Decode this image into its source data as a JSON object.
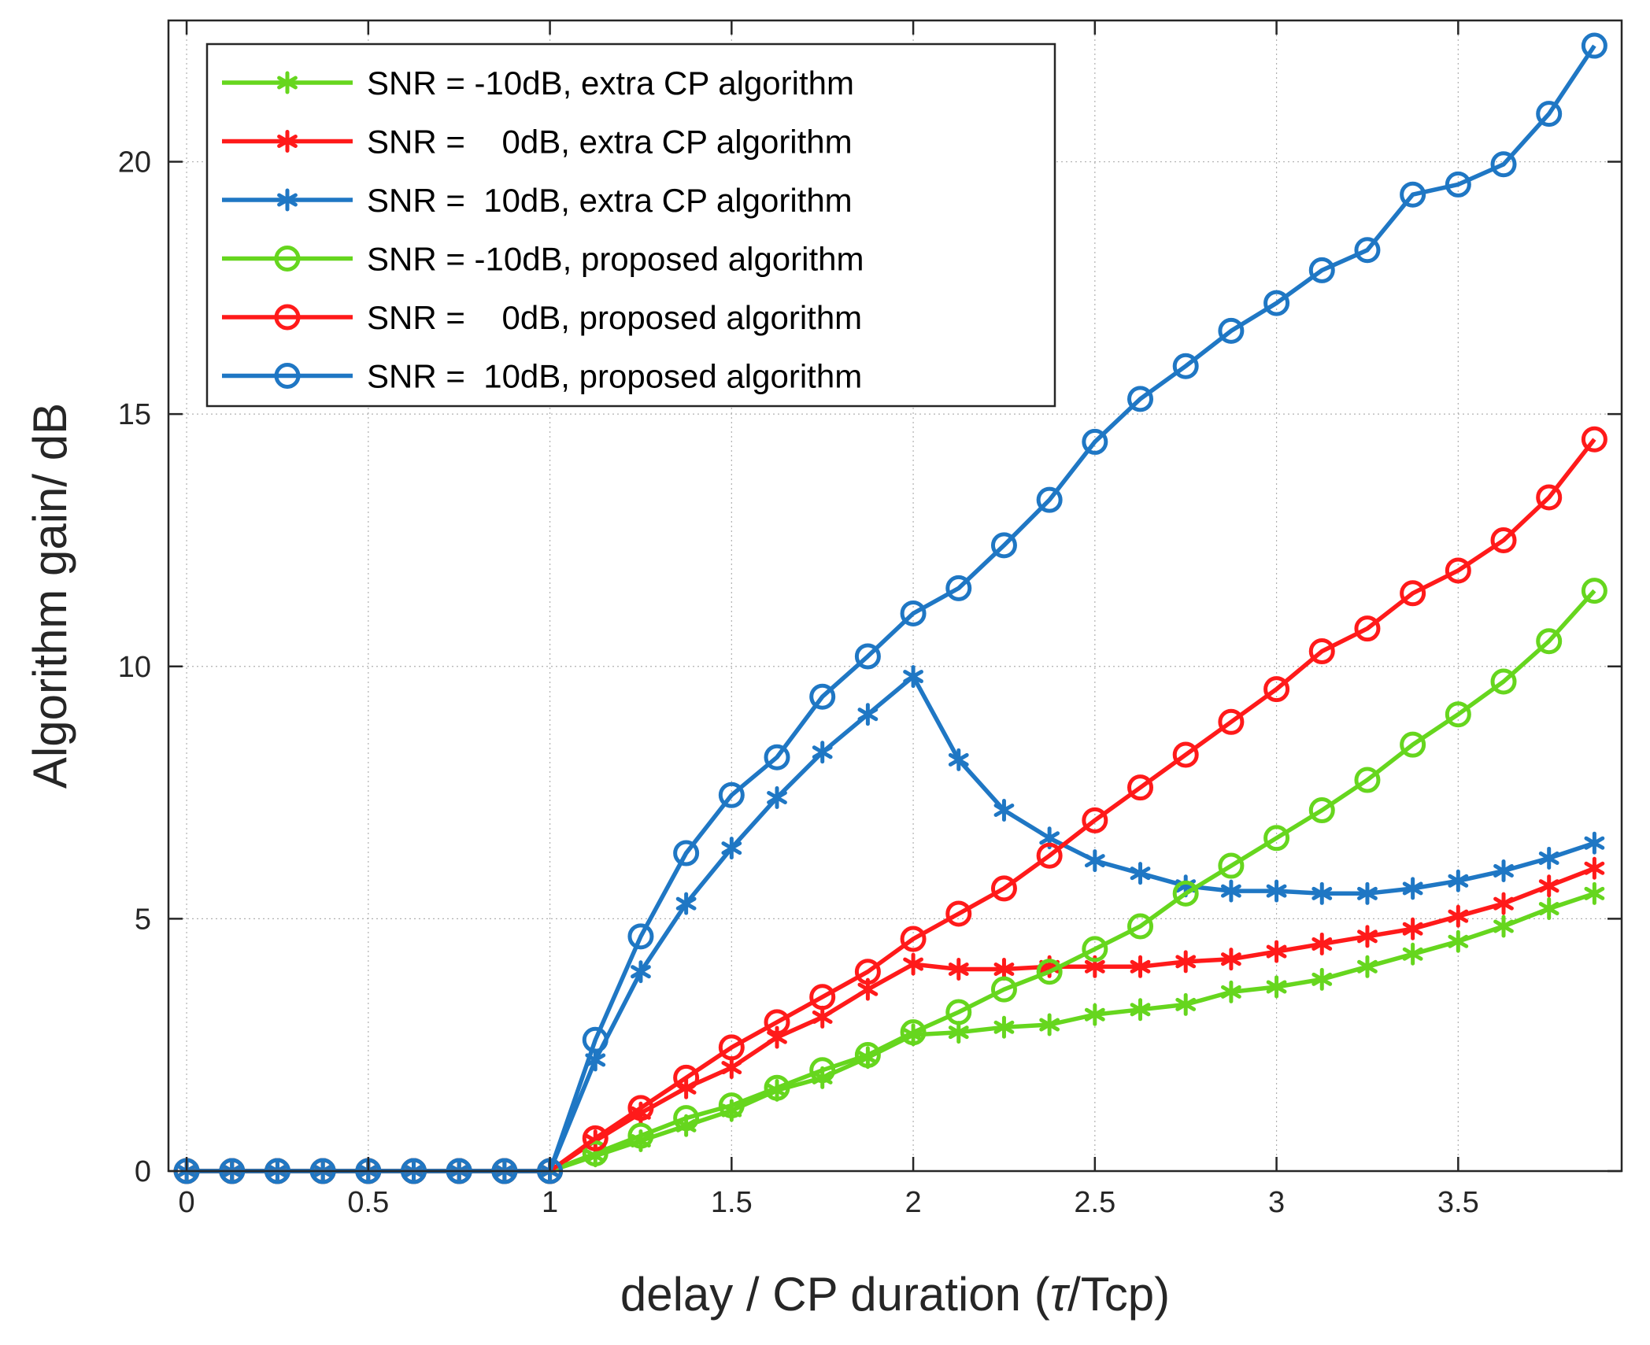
{
  "chart_data": {
    "type": "line",
    "title": "",
    "xlabel_prefix": "delay / CP duration (",
    "xlabel_symbol": "τ",
    "xlabel_suffix": "/Tcp)",
    "ylabel": "Algorithm gain/ dB",
    "xlim": [
      -0.05,
      3.95
    ],
    "ylim": [
      0,
      22.8
    ],
    "xticks": [
      0,
      0.5,
      1,
      1.5,
      2,
      2.5,
      3,
      3.5
    ],
    "xtick_labels": [
      "0",
      "0.5",
      "1",
      "1.5",
      "2",
      "2.5",
      "3",
      "3.5"
    ],
    "yticks": [
      0,
      5,
      10,
      15,
      20
    ],
    "ytick_labels": [
      "0",
      "5",
      "10",
      "15",
      "20"
    ],
    "grid": true,
    "legend_position": "top-left",
    "x": [
      0,
      0.125,
      0.25,
      0.375,
      0.5,
      0.625,
      0.75,
      0.875,
      1,
      1.125,
      1.25,
      1.375,
      1.5,
      1.625,
      1.75,
      1.875,
      2,
      2.125,
      2.25,
      2.375,
      2.5,
      2.625,
      2.75,
      2.875,
      3,
      3.125,
      3.25,
      3.375,
      3.5,
      3.625,
      3.75,
      3.875
    ],
    "series": [
      {
        "name": "SNR = -10dB, extra CP algorithm",
        "color": "#66d61e",
        "marker": "star",
        "values": [
          0,
          0,
          0,
          0,
          0,
          0,
          0,
          0,
          0,
          0.3,
          0.6,
          0.9,
          1.2,
          1.6,
          1.85,
          2.25,
          2.7,
          2.75,
          2.85,
          2.9,
          3.1,
          3.2,
          3.3,
          3.55,
          3.65,
          3.8,
          4.05,
          4.3,
          4.55,
          4.85,
          5.2,
          5.5
        ]
      },
      {
        "name": "SNR =    0dB, extra CP algorithm",
        "color": "#ff1a1a",
        "marker": "star",
        "values": [
          0,
          0,
          0,
          0,
          0,
          0,
          0,
          0,
          0,
          0.6,
          1.15,
          1.65,
          2.05,
          2.65,
          3.05,
          3.6,
          4.1,
          4.0,
          4.0,
          4.05,
          4.05,
          4.05,
          4.15,
          4.2,
          4.35,
          4.5,
          4.65,
          4.8,
          5.05,
          5.3,
          5.65,
          6.0
        ]
      },
      {
        "name": "SNR =  10dB, extra CP algorithm",
        "color": "#1f77c4",
        "marker": "star",
        "values": [
          0,
          0,
          0,
          0,
          0,
          0,
          0,
          0,
          0,
          2.2,
          3.95,
          5.3,
          6.4,
          7.4,
          8.3,
          9.05,
          9.8,
          8.15,
          7.15,
          6.6,
          6.15,
          5.9,
          5.65,
          5.55,
          5.55,
          5.5,
          5.5,
          5.6,
          5.75,
          5.95,
          6.2,
          6.5
        ]
      },
      {
        "name": "SNR = -10dB, proposed algorithm",
        "color": "#66d61e",
        "marker": "circle",
        "values": [
          0,
          0,
          0,
          0,
          0,
          0,
          0,
          0,
          0,
          0.35,
          0.7,
          1.05,
          1.3,
          1.65,
          2.0,
          2.3,
          2.75,
          3.15,
          3.6,
          3.95,
          4.4,
          4.85,
          5.5,
          6.05,
          6.6,
          7.15,
          7.75,
          8.45,
          9.05,
          9.7,
          10.5,
          11.5
        ]
      },
      {
        "name": "SNR =    0dB, proposed algorithm",
        "color": "#ff1a1a",
        "marker": "circle",
        "values": [
          0,
          0,
          0,
          0,
          0,
          0,
          0,
          0,
          0,
          0.65,
          1.25,
          1.85,
          2.45,
          2.95,
          3.45,
          3.95,
          4.6,
          5.1,
          5.6,
          6.25,
          6.95,
          7.6,
          8.25,
          8.9,
          9.55,
          10.3,
          10.75,
          11.45,
          11.9,
          12.5,
          13.35,
          14.5
        ]
      },
      {
        "name": "SNR =  10dB, proposed algorithm",
        "color": "#1f77c4",
        "marker": "circle",
        "values": [
          0,
          0,
          0,
          0,
          0,
          0,
          0,
          0,
          0,
          2.6,
          4.65,
          6.3,
          7.45,
          8.2,
          9.4,
          10.2,
          11.05,
          11.55,
          12.4,
          13.3,
          14.45,
          15.3,
          15.95,
          16.65,
          17.2,
          17.85,
          18.25,
          19.35,
          19.55,
          19.95,
          20.95,
          22.3
        ]
      }
    ]
  }
}
